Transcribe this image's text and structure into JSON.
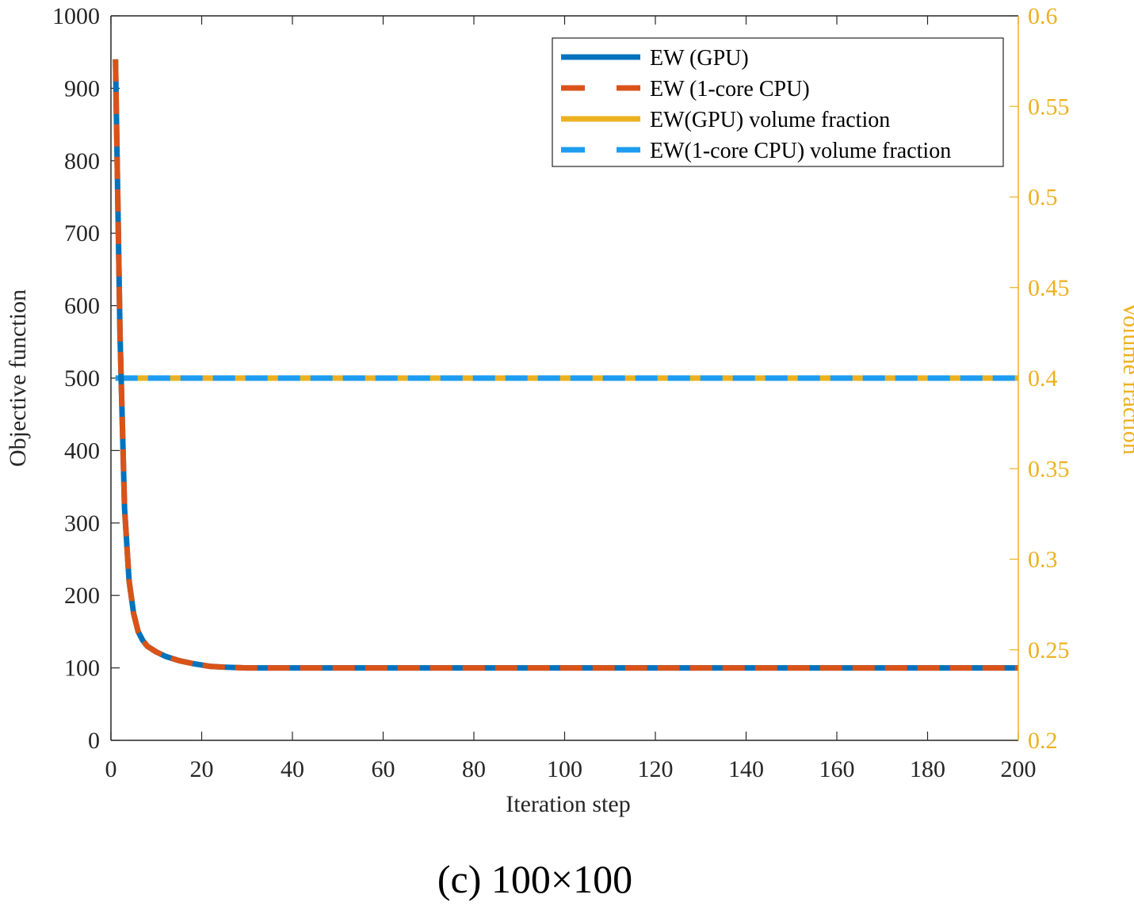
{
  "chart_data": {
    "type": "line",
    "title": "",
    "caption": "(c) 100×100",
    "xlabel": "Iteration step",
    "ylabel": "Objective function",
    "ylabel_right": "Volume fraction",
    "xlim": [
      0,
      200
    ],
    "ylim": [
      0,
      1000
    ],
    "ylim_right": [
      0.2,
      0.6
    ],
    "x_ticks": [
      0,
      20,
      40,
      60,
      80,
      100,
      120,
      140,
      160,
      180,
      200
    ],
    "y_ticks": [
      0,
      100,
      200,
      300,
      400,
      500,
      600,
      700,
      800,
      900,
      1000
    ],
    "y_ticks_right": [
      "0.2",
      "0.25",
      "0.3",
      "0.35",
      "0.4",
      "0.45",
      "0.5",
      "0.55",
      "0.6"
    ],
    "legend_position": "top-right",
    "colors": {
      "gpu": "#0072BD",
      "cpu": "#D95319",
      "vf_gpu": "#EDB120",
      "vf_cpu": "#1E9CF0",
      "right_axis": "#EDB120"
    },
    "series": [
      {
        "name": "EW (GPU)",
        "axis": "left",
        "style": "solid",
        "x": [
          1,
          2,
          3,
          4,
          5,
          6,
          7,
          8,
          10,
          12,
          15,
          18,
          20,
          22,
          25,
          30,
          40,
          50,
          100,
          150,
          200
        ],
        "values": [
          940,
          560,
          320,
          220,
          175,
          150,
          138,
          130,
          122,
          116,
          110,
          106,
          104,
          102,
          101,
          100,
          100,
          100,
          100,
          100,
          100
        ]
      },
      {
        "name": "EW (1-core CPU)",
        "axis": "left",
        "style": "dashed",
        "x": [
          1,
          2,
          3,
          4,
          5,
          6,
          7,
          8,
          10,
          12,
          15,
          18,
          20,
          22,
          25,
          30,
          40,
          50,
          100,
          150,
          200
        ],
        "values": [
          940,
          560,
          320,
          220,
          175,
          150,
          138,
          130,
          122,
          116,
          110,
          106,
          104,
          102,
          101,
          100,
          100,
          100,
          100,
          100,
          100
        ]
      },
      {
        "name": "EW(GPU) volume fraction",
        "axis": "right",
        "style": "solid",
        "x": [
          1,
          200
        ],
        "values": [
          0.4,
          0.4
        ]
      },
      {
        "name": "EW(1-core CPU) volume fraction",
        "axis": "right",
        "style": "dashed",
        "x": [
          1,
          200
        ],
        "values": [
          0.4,
          0.4
        ]
      }
    ]
  }
}
